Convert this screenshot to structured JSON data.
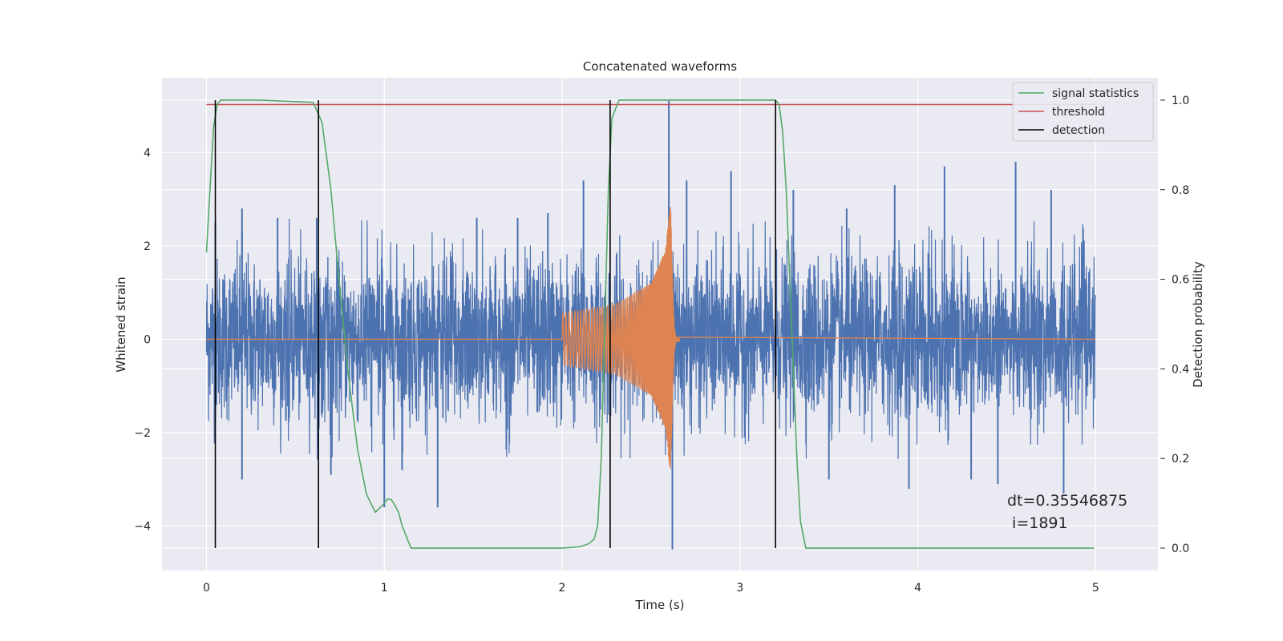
{
  "chart_data": {
    "type": "line",
    "title": "Concatenated waveforms",
    "xlabel": "Time (s)",
    "ylabel": "Whitened strain",
    "y2label": "Detection probability",
    "xlim": [
      -0.25,
      5.35
    ],
    "ylim": [
      -4.95,
      5.6
    ],
    "y2lim": [
      -0.05,
      1.05
    ],
    "xticks": [
      0,
      1,
      2,
      3,
      4,
      5
    ],
    "yticks": [
      -4,
      -2,
      0,
      2,
      4
    ],
    "y2ticks": [
      0.0,
      0.2,
      0.4,
      0.6,
      0.8,
      1.0
    ],
    "xtick_labels": [
      "0",
      "1",
      "2",
      "3",
      "4",
      "5"
    ],
    "ytick_labels": [
      "−4",
      "−2",
      "0",
      "2",
      "4"
    ],
    "y2tick_labels": [
      "0.0",
      "0.2",
      "0.4",
      "0.6",
      "0.8",
      "1.0"
    ],
    "grid": true,
    "legend_position": "top-right",
    "legend": [
      {
        "label": "signal statistics",
        "color": "#55a868"
      },
      {
        "label": "threshold",
        "color": "#c44e52"
      },
      {
        "label": "detection",
        "color": "#000000"
      }
    ],
    "series": [
      {
        "name": "whitened strain",
        "axis": "left",
        "color": "#4c72b0",
        "x_range": [
          0,
          5
        ],
        "envelope": {
          "noise_std": 0.85,
          "typical_peak": 2.6,
          "max": 5.1,
          "min": -4.5
        },
        "spikes": [
          {
            "x": 0.05,
            "y": 2.5
          },
          {
            "x": 0.2,
            "y": 2.3
          },
          {
            "x": 0.2,
            "y": -3.0
          },
          {
            "x": 0.2,
            "y": 2.8
          },
          {
            "x": 0.4,
            "y": 2.6
          },
          {
            "x": 0.62,
            "y": 2.6
          },
          {
            "x": 0.7,
            "y": -2.9
          },
          {
            "x": 1.0,
            "y": -3.6
          },
          {
            "x": 1.1,
            "y": -2.8
          },
          {
            "x": 1.3,
            "y": -3.6
          },
          {
            "x": 1.52,
            "y": 2.6
          },
          {
            "x": 1.75,
            "y": 2.6
          },
          {
            "x": 1.92,
            "y": 2.7
          },
          {
            "x": 2.12,
            "y": 3.4
          },
          {
            "x": 2.6,
            "y": 5.1
          },
          {
            "x": 2.62,
            "y": -4.5
          },
          {
            "x": 2.7,
            "y": 3.4
          },
          {
            "x": 2.95,
            "y": 3.6
          },
          {
            "x": 3.3,
            "y": 3.2
          },
          {
            "x": 3.5,
            "y": -3.0
          },
          {
            "x": 3.6,
            "y": 2.8
          },
          {
            "x": 3.87,
            "y": 3.3
          },
          {
            "x": 3.95,
            "y": -3.2
          },
          {
            "x": 4.15,
            "y": 3.7
          },
          {
            "x": 4.3,
            "y": -3.0
          },
          {
            "x": 4.45,
            "y": -3.1
          },
          {
            "x": 4.55,
            "y": 3.8
          },
          {
            "x": 4.75,
            "y": 3.2
          },
          {
            "x": 4.82,
            "y": -3.3
          }
        ]
      },
      {
        "name": "injected waveform",
        "axis": "left",
        "color": "#dd8452",
        "x": [
          0,
          2.0,
          2.3,
          2.5,
          2.58,
          2.61,
          2.62,
          2.63,
          2.64,
          5.0
        ],
        "amplitude": [
          0,
          0.55,
          0.75,
          1.2,
          1.9,
          2.9,
          1.4,
          0.3,
          0.05,
          0
        ]
      },
      {
        "name": "signal statistics",
        "axis": "right",
        "color": "#55a868",
        "x": [
          0,
          0.02,
          0.04,
          0.06,
          0.08,
          0.12,
          0.3,
          0.6,
          0.65,
          0.7,
          0.75,
          0.8,
          0.85,
          0.9,
          0.95,
          1.0,
          1.02,
          1.04,
          1.06,
          1.08,
          1.1,
          1.15,
          1.3,
          2.0,
          2.1,
          2.15,
          2.18,
          2.2,
          2.22,
          2.24,
          2.26,
          2.28,
          2.32,
          2.5,
          3.2,
          3.22,
          3.24,
          3.26,
          3.28,
          3.3,
          3.32,
          3.34,
          3.37,
          3.5,
          4.0,
          4.99
        ],
        "y": [
          0.66,
          0.8,
          0.94,
          0.99,
          1.0,
          1.0,
          1.0,
          0.995,
          0.95,
          0.8,
          0.58,
          0.38,
          0.22,
          0.12,
          0.08,
          0.1,
          0.11,
          0.108,
          0.095,
          0.08,
          0.05,
          0.0,
          0.0,
          0.0,
          0.003,
          0.01,
          0.02,
          0.05,
          0.2,
          0.5,
          0.8,
          0.96,
          1.0,
          1.0,
          1.0,
          0.99,
          0.93,
          0.8,
          0.6,
          0.4,
          0.2,
          0.06,
          0.0,
          0.0,
          0.0,
          0.0
        ]
      },
      {
        "name": "threshold",
        "axis": "right",
        "color": "#c44e52",
        "x": [
          0,
          5
        ],
        "y": [
          0.99,
          0.99
        ]
      }
    ],
    "detections": [
      0.05,
      0.63,
      2.27,
      3.2
    ],
    "annotation": {
      "lines": [
        "dt=0.35546875",
        " i=1891"
      ],
      "x": 4.5,
      "y_right": 0.1
    }
  }
}
